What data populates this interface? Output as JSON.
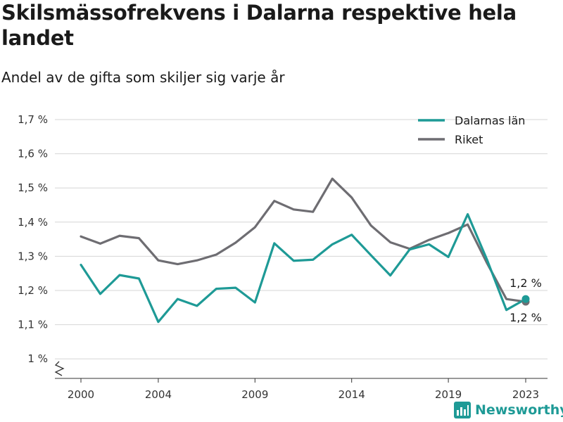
{
  "title": "Skilsmässofrekvens i Dalarna respektive hela landet",
  "subtitle": "Andel av de gifta som skiljer sig varje år",
  "logo_text": "Newsworthy",
  "chart_data": {
    "type": "line",
    "title": "Skilsmässofrekvens i Dalarna respektive hela landet",
    "subtitle": "Andel av de gifta som skiljer sig varje år",
    "xlabel": "",
    "ylabel": "",
    "x": [
      2000,
      2001,
      2002,
      2003,
      2004,
      2005,
      2006,
      2007,
      2008,
      2009,
      2010,
      2011,
      2012,
      2013,
      2014,
      2015,
      2016,
      2017,
      2018,
      2019,
      2020,
      2021,
      2022,
      2023
    ],
    "x_ticks": [
      2000,
      2004,
      2009,
      2014,
      2019,
      2023
    ],
    "y_ticks": [
      1.0,
      1.1,
      1.2,
      1.3,
      1.4,
      1.5,
      1.6,
      1.7
    ],
    "y_tick_labels": [
      "1 %",
      "1,1 %",
      "1,2 %",
      "1,3 %",
      "1,4 %",
      "1,5 %",
      "1,6 %",
      "1,7 %"
    ],
    "ylim": [
      0.94,
      1.7
    ],
    "grid": true,
    "legend_position": "top-right",
    "series": [
      {
        "name": "Dalarnas län",
        "color": "#1e9a96",
        "values": [
          1.275,
          1.19,
          1.245,
          1.235,
          1.108,
          1.175,
          1.155,
          1.205,
          1.208,
          1.165,
          1.338,
          1.287,
          1.29,
          1.335,
          1.363,
          1.303,
          1.244,
          1.32,
          1.335,
          1.298,
          1.423,
          1.29,
          1.143,
          1.175
        ],
        "end_label": "1,2 %"
      },
      {
        "name": "Riket",
        "color": "#6e6d72",
        "values": [
          1.358,
          1.337,
          1.36,
          1.353,
          1.288,
          1.277,
          1.288,
          1.305,
          1.34,
          1.385,
          1.462,
          1.437,
          1.43,
          1.527,
          1.472,
          1.39,
          1.341,
          1.322,
          1.348,
          1.368,
          1.393,
          1.28,
          1.175,
          1.167
        ],
        "end_label": "1,2 %"
      }
    ]
  }
}
